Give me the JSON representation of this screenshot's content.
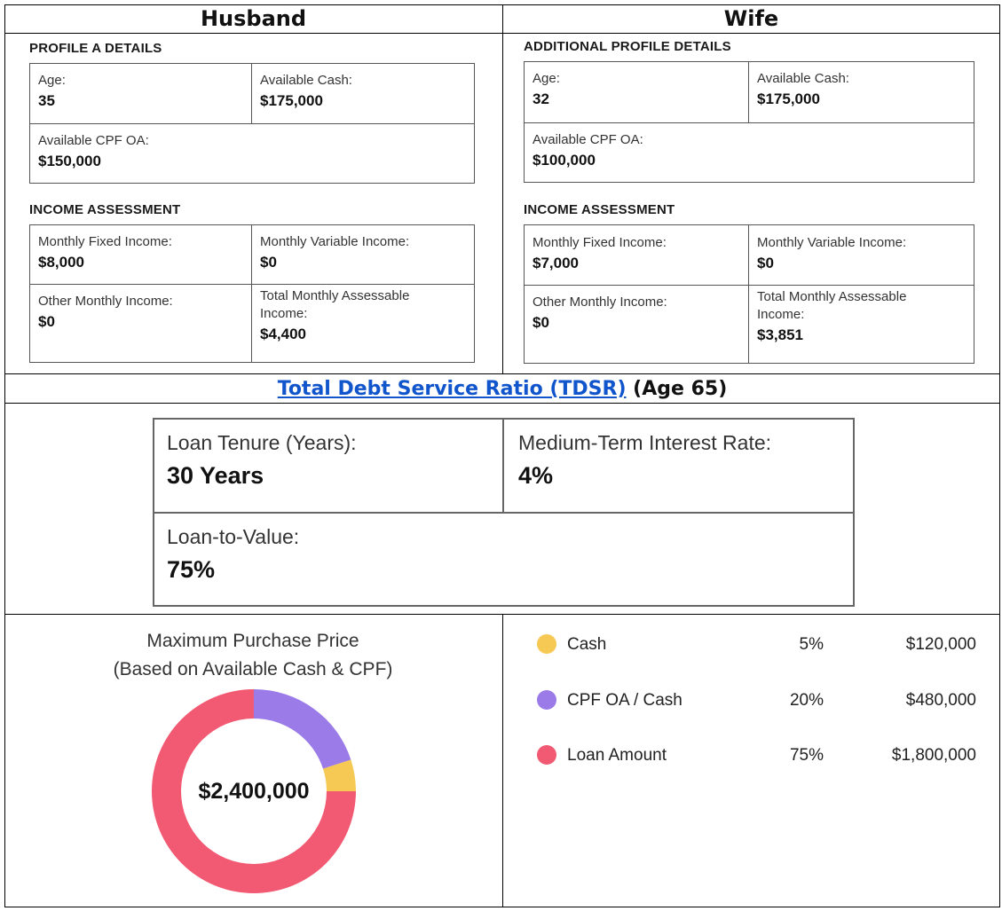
{
  "columns": {
    "husband": "Husband",
    "wife": "Wife"
  },
  "husband": {
    "profile_title": "PROFILE A DETAILS",
    "age_label": "Age:",
    "age_value": "35",
    "cash_label": "Available Cash:",
    "cash_value": "$175,000",
    "cpf_label": "Available CPF OA:",
    "cpf_value": "$150,000",
    "income_title": "INCOME ASSESSMENT",
    "fixed_label": "Monthly Fixed Income:",
    "fixed_value": "$8,000",
    "variable_label": "Monthly Variable Income:",
    "variable_value": "$0",
    "other_label": "Other Monthly Income:",
    "other_value": "$0",
    "total_label_1": "Total Monthly Assessable",
    "total_label_2": "Income:",
    "total_value": "$4,400"
  },
  "wife": {
    "profile_title": "ADDITIONAL PROFILE DETAILS",
    "age_label": "Age:",
    "age_value": "32",
    "cash_label": "Available Cash:",
    "cash_value": "$175,000",
    "cpf_label": "Available CPF OA:",
    "cpf_value": "$100,000",
    "income_title": "INCOME ASSESSMENT",
    "fixed_label": "Monthly Fixed Income:",
    "fixed_value": "$7,000",
    "variable_label": "Monthly Variable Income:",
    "variable_value": "$0",
    "other_label": "Other Monthly Income:",
    "other_value": "$0",
    "total_label_1": "Total Monthly Assessable",
    "total_label_2": "Income:",
    "total_value": "$3,851"
  },
  "tdsr": {
    "link_text": "Total Debt Service Ratio (TDSR)",
    "suffix": " (Age 65)"
  },
  "loan": {
    "tenure_label": "Loan Tenure (Years):",
    "tenure_value": "30 Years",
    "rate_label": "Medium-Term Interest Rate:",
    "rate_value": "4%",
    "ltv_label": "Loan-to-Value:",
    "ltv_value": "75%"
  },
  "purchase": {
    "title_1": "Maximum Purchase Price",
    "title_2": "(Based on Available Cash & CPF)",
    "total": "$2,400,000",
    "colors": {
      "cash": "#f6c955",
      "cpf": "#9b7be8",
      "loan": "#f25a73"
    },
    "items": [
      {
        "name": "Cash",
        "pct": "5%",
        "amount": "$120,000"
      },
      {
        "name": "CPF OA / Cash",
        "pct": "20%",
        "amount": "$480,000"
      },
      {
        "name": "Loan Amount",
        "pct": "75%",
        "amount": "$1,800,000"
      }
    ]
  },
  "chart_data": {
    "type": "pie",
    "categories": [
      "Cash",
      "CPF OA / Cash",
      "Loan Amount"
    ],
    "values": [
      5,
      20,
      75
    ],
    "title": "Maximum Purchase Price"
  }
}
